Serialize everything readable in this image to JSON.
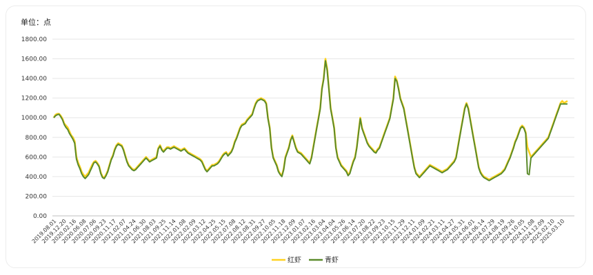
{
  "unit_label": "单位：点",
  "colors": {
    "red_shrimp": "#ffd21f",
    "green_shrimp": "#5a8a2a",
    "grid": "#e6e6e6",
    "axis": "#bdbdbd"
  },
  "chart_data": {
    "type": "line",
    "title": "",
    "xlabel": "",
    "ylabel": "",
    "ylim": [
      0,
      1800
    ],
    "y_ticks": [
      "0.00",
      "200.00",
      "400.00",
      "600.00",
      "800.00",
      "1000.00",
      "1200.00",
      "1400.00",
      "1600.00",
      "1800.00"
    ],
    "grid": true,
    "legend_position": "bottom",
    "x_tick_labels": [
      "2019.08.01",
      "2019.12.20",
      "2020.02.16",
      "2020.06.08",
      "2020.07.06",
      "2020.09.23",
      "2020.11.17",
      "2021.02.07",
      "2021.04.24",
      "2021.06.30",
      "2021.08.03",
      "2021.09.25",
      "2021.11.14",
      "2022.01.08",
      "2022.02.09",
      "2022.03.12",
      "2022.04.25",
      "2022.05.15",
      "2022.07.08",
      "2022.08.12",
      "2022.08.31",
      "2022.09.27",
      "2022.10.05",
      "2022.11.18",
      "2022.12.09",
      "2023.01.07",
      "2023.02.16",
      "2023.03.04",
      "2023.04.04",
      "2023.05.26",
      "2023.06.14",
      "2023.07.20",
      "2023.08.22",
      "2023.09.23",
      "2023.10.15",
      "2023.11.29",
      "2023.12.11",
      "2024.01.09",
      "2024.02.21",
      "2024.03.11",
      "2024.04.27",
      "2024.05.31",
      "2024.06.01",
      "2024.06.14",
      "2024.07.29",
      "2024.08.19",
      "2024.09.26",
      "2024.10.05",
      "2024.11.08",
      "2024.12.09",
      "2025.02.10",
      "2025.03.10"
    ],
    "series": [
      {
        "name": "红虾",
        "color": "#ffd21f",
        "values": [
          1000,
          1030,
          1040,
          1040,
          1020,
          990,
          940,
          920,
          900,
          860,
          820,
          800,
          760,
          600,
          540,
          500,
          450,
          420,
          400,
          420,
          440,
          480,
          520,
          550,
          560,
          540,
          510,
          440,
          400,
          390,
          420,
          460,
          520,
          580,
          620,
          680,
          720,
          740,
          730,
          720,
          680,
          620,
          560,
          520,
          500,
          480,
          470,
          480,
          500,
          520,
          540,
          560,
          580,
          600,
          580,
          560,
          570,
          580,
          590,
          600,
          690,
          720,
          680,
          660,
          680,
          700,
          700,
          690,
          700,
          710,
          700,
          690,
          680,
          670,
          680,
          690,
          670,
          650,
          640,
          630,
          620,
          610,
          600,
          590,
          580,
          560,
          520,
          480,
          460,
          480,
          500,
          520,
          520,
          530,
          540,
          560,
          590,
          620,
          640,
          650,
          620,
          640,
          660,
          700,
          760,
          800,
          850,
          900,
          930,
          940,
          950,
          980,
          1000,
          1020,
          1040,
          1100,
          1150,
          1180,
          1190,
          1200,
          1190,
          1180,
          1150,
          1000,
          900,
          700,
          600,
          560,
          520,
          460,
          430,
          410,
          480,
          600,
          650,
          700,
          780,
          820,
          760,
          700,
          660,
          650,
          640,
          620,
          600,
          580,
          560,
          540,
          600,
          700,
          800,
          900,
          1000,
          1100,
          1300,
          1400,
          1600,
          1500,
          1300,
          1100,
          1000,
          900,
          700,
          600,
          560,
          520,
          500,
          480,
          460,
          420,
          440,
          500,
          560,
          600,
          700,
          850,
          1000,
          900,
          850,
          800,
          750,
          720,
          700,
          680,
          660,
          650,
          680,
          700,
          750,
          800,
          850,
          900,
          950,
          1000,
          1100,
          1200,
          1420,
          1380,
          1300,
          1200,
          1150,
          1100,
          1000,
          900,
          800,
          700,
          600,
          500,
          440,
          420,
          400,
          420,
          440,
          460,
          480,
          500,
          520,
          510,
          500,
          490,
          480,
          470,
          460,
          450,
          460,
          470,
          480,
          500,
          520,
          540,
          560,
          600,
          700,
          800,
          900,
          1000,
          1100,
          1150,
          1100,
          1000,
          900,
          800,
          700,
          600,
          500,
          450,
          420,
          400,
          390,
          380,
          370,
          380,
          390,
          400,
          410,
          420,
          430,
          440,
          460,
          480,
          520,
          560,
          600,
          650,
          700,
          760,
          800,
          850,
          900,
          920,
          900,
          850,
          700,
          650,
          600,
          620,
          640,
          660,
          680,
          700,
          720,
          740,
          760,
          780,
          800,
          850,
          900,
          950,
          1000,
          1050,
          1100,
          1150,
          1170,
          1150,
          1160,
          1170
        ]
      },
      {
        "name": "青虾",
        "color": "#5a8a2a",
        "values": [
          1000,
          1020,
          1030,
          1035,
          1010,
          980,
          930,
          900,
          880,
          840,
          810,
          780,
          740,
          580,
          520,
          480,
          430,
          400,
          380,
          400,
          420,
          460,
          500,
          540,
          550,
          530,
          500,
          430,
          390,
          380,
          410,
          450,
          510,
          570,
          610,
          670,
          710,
          730,
          720,
          710,
          670,
          610,
          550,
          510,
          490,
          470,
          460,
          470,
          490,
          510,
          530,
          550,
          570,
          590,
          570,
          550,
          560,
          570,
          580,
          590,
          680,
          710,
          670,
          650,
          670,
          690,
          690,
          680,
          690,
          700,
          690,
          680,
          670,
          660,
          670,
          680,
          660,
          640,
          630,
          620,
          610,
          600,
          590,
          580,
          570,
          550,
          510,
          470,
          450,
          470,
          490,
          510,
          510,
          520,
          530,
          550,
          580,
          610,
          630,
          640,
          610,
          630,
          650,
          690,
          750,
          790,
          840,
          890,
          920,
          930,
          940,
          970,
          990,
          1010,
          1030,
          1090,
          1140,
          1170,
          1180,
          1190,
          1180,
          1170,
          1140,
          990,
          890,
          690,
          590,
          550,
          510,
          450,
          420,
          400,
          470,
          590,
          640,
          690,
          770,
          810,
          750,
          690,
          650,
          640,
          630,
          610,
          590,
          570,
          550,
          530,
          590,
          690,
          790,
          890,
          990,
          1090,
          1290,
          1390,
          1580,
          1480,
          1290,
          1090,
          990,
          890,
          690,
          590,
          550,
          510,
          490,
          470,
          450,
          410,
          430,
          490,
          550,
          590,
          690,
          840,
          990,
          890,
          840,
          790,
          740,
          710,
          690,
          670,
          650,
          640,
          670,
          690,
          740,
          790,
          840,
          890,
          940,
          990,
          1090,
          1190,
          1400,
          1370,
          1290,
          1190,
          1140,
          1090,
          990,
          890,
          790,
          690,
          590,
          490,
          430,
          410,
          390,
          410,
          430,
          450,
          470,
          490,
          510,
          500,
          490,
          480,
          470,
          460,
          450,
          440,
          450,
          460,
          470,
          490,
          510,
          530,
          550,
          590,
          690,
          790,
          890,
          990,
          1090,
          1140,
          1090,
          990,
          890,
          790,
          690,
          590,
          490,
          440,
          410,
          390,
          380,
          370,
          360,
          370,
          380,
          390,
          400,
          410,
          420,
          430,
          450,
          470,
          510,
          550,
          590,
          640,
          690,
          750,
          790,
          840,
          890,
          910,
          890,
          840,
          430,
          420,
          590,
          610,
          630,
          650,
          670,
          690,
          710,
          730,
          750,
          770,
          790,
          840,
          890,
          940,
          990,
          1040,
          1090,
          1140,
          1140,
          1140,
          1140,
          1140
        ]
      }
    ]
  }
}
